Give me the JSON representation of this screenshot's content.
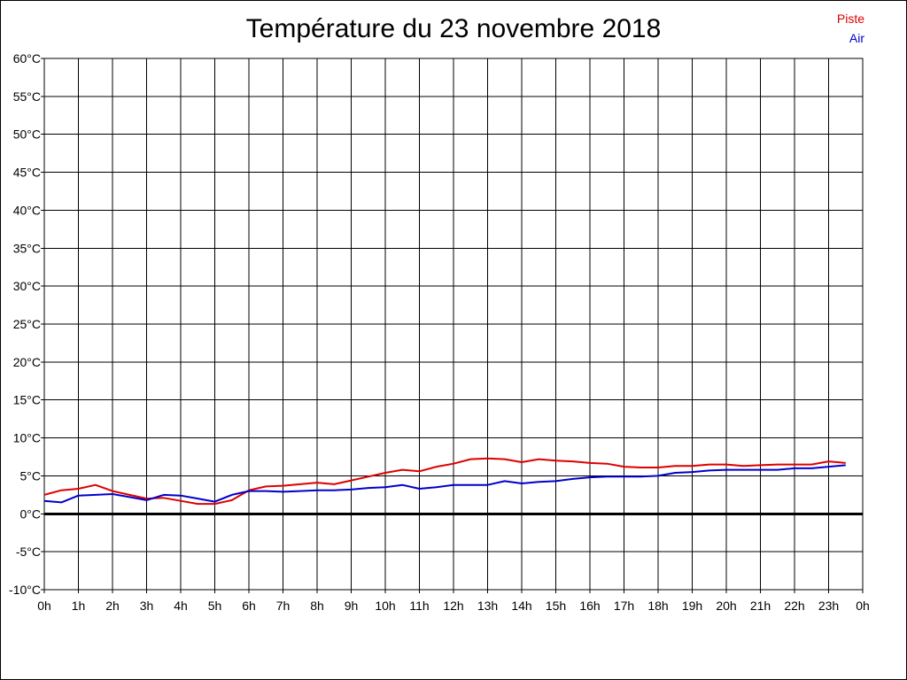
{
  "chart_data": {
    "type": "line",
    "title": "Température du 23 novembre 2018",
    "xlabel": "",
    "ylabel": "",
    "x_unit": "hour",
    "xlim": [
      0,
      24
    ],
    "ylim": [
      -10,
      60
    ],
    "y_ticks": [
      "-10°C",
      "-5°C",
      "0°C",
      "5°C",
      "10°C",
      "15°C",
      "20°C",
      "25°C",
      "30°C",
      "35°C",
      "40°C",
      "45°C",
      "50°C",
      "55°C",
      "60°C"
    ],
    "x_ticks": [
      "0h",
      "1h",
      "2h",
      "3h",
      "4h",
      "5h",
      "6h",
      "7h",
      "8h",
      "9h",
      "10h",
      "11h",
      "12h",
      "13h",
      "14h",
      "15h",
      "16h",
      "17h",
      "18h",
      "19h",
      "20h",
      "21h",
      "22h",
      "23h",
      "0h"
    ],
    "grid": true,
    "legend_position": "top-right",
    "series": [
      {
        "name": "Piste",
        "color": "#dd0000",
        "points": [
          [
            0,
            2.5
          ],
          [
            0.5,
            3.1
          ],
          [
            1,
            3.3
          ],
          [
            1.5,
            3.8
          ],
          [
            2,
            3.0
          ],
          [
            2.5,
            2.5
          ],
          [
            3,
            2.0
          ],
          [
            3.5,
            2.1
          ],
          [
            4,
            1.7
          ],
          [
            4.5,
            1.3
          ],
          [
            5,
            1.3
          ],
          [
            5.5,
            1.8
          ],
          [
            6,
            3.1
          ],
          [
            6.5,
            3.6
          ],
          [
            7,
            3.7
          ],
          [
            7.5,
            3.9
          ],
          [
            8,
            4.1
          ],
          [
            8.5,
            3.9
          ],
          [
            9,
            4.4
          ],
          [
            9.5,
            4.9
          ],
          [
            10,
            5.4
          ],
          [
            10.5,
            5.8
          ],
          [
            11,
            5.6
          ],
          [
            11.5,
            6.2
          ],
          [
            12,
            6.6
          ],
          [
            12.5,
            7.2
          ],
          [
            13,
            7.3
          ],
          [
            13.5,
            7.2
          ],
          [
            14,
            6.8
          ],
          [
            14.5,
            7.2
          ],
          [
            15,
            7.0
          ],
          [
            15.5,
            6.9
          ],
          [
            16,
            6.7
          ],
          [
            16.5,
            6.6
          ],
          [
            17,
            6.2
          ],
          [
            17.5,
            6.1
          ],
          [
            18,
            6.1
          ],
          [
            18.5,
            6.3
          ],
          [
            19,
            6.3
          ],
          [
            19.5,
            6.5
          ],
          [
            20,
            6.5
          ],
          [
            20.5,
            6.3
          ],
          [
            21,
            6.4
          ],
          [
            21.5,
            6.5
          ],
          [
            22,
            6.5
          ],
          [
            22.5,
            6.5
          ],
          [
            23,
            6.9
          ],
          [
            23.5,
            6.7
          ]
        ]
      },
      {
        "name": "Air",
        "color": "#0000cc",
        "points": [
          [
            0,
            1.7
          ],
          [
            0.5,
            1.5
          ],
          [
            1,
            2.4
          ],
          [
            1.5,
            2.5
          ],
          [
            2,
            2.6
          ],
          [
            2.5,
            2.2
          ],
          [
            3,
            1.8
          ],
          [
            3.5,
            2.5
          ],
          [
            4,
            2.4
          ],
          [
            4.5,
            2.0
          ],
          [
            5,
            1.6
          ],
          [
            5.5,
            2.5
          ],
          [
            6,
            3.0
          ],
          [
            6.5,
            3.0
          ],
          [
            7,
            2.9
          ],
          [
            7.5,
            3.0
          ],
          [
            8,
            3.1
          ],
          [
            8.5,
            3.1
          ],
          [
            9,
            3.2
          ],
          [
            9.5,
            3.4
          ],
          [
            10,
            3.5
          ],
          [
            10.5,
            3.8
          ],
          [
            11,
            3.3
          ],
          [
            11.5,
            3.5
          ],
          [
            12,
            3.8
          ],
          [
            12.5,
            3.8
          ],
          [
            13,
            3.8
          ],
          [
            13.5,
            4.3
          ],
          [
            14,
            4.0
          ],
          [
            14.5,
            4.2
          ],
          [
            15,
            4.3
          ],
          [
            15.5,
            4.6
          ],
          [
            16,
            4.8
          ],
          [
            16.5,
            4.9
          ],
          [
            17,
            4.9
          ],
          [
            17.5,
            4.9
          ],
          [
            18,
            5.0
          ],
          [
            18.5,
            5.4
          ],
          [
            19,
            5.5
          ],
          [
            19.5,
            5.7
          ],
          [
            20,
            5.8
          ],
          [
            20.5,
            5.8
          ],
          [
            21,
            5.8
          ],
          [
            21.5,
            5.8
          ],
          [
            22,
            6.0
          ],
          [
            22.5,
            6.0
          ],
          [
            23,
            6.2
          ],
          [
            23.5,
            6.4
          ]
        ]
      }
    ]
  }
}
